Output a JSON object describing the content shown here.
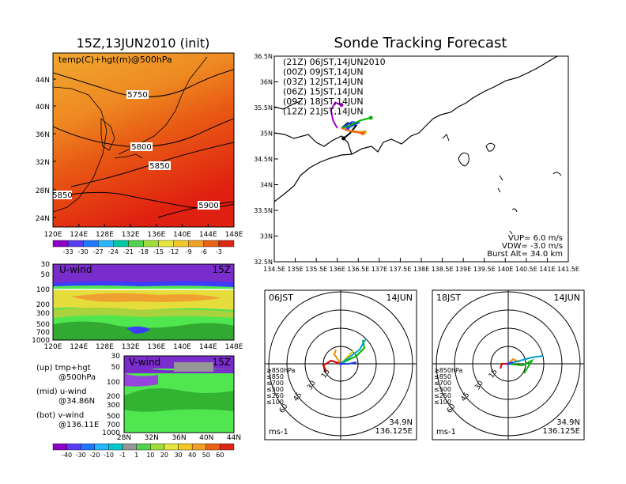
{
  "left": {
    "title": "15Z,13JUN2010 (init)",
    "map": {
      "label": "temp(C)+hgt(m)@500hPa",
      "lat_ticks": [
        "44N",
        "40N",
        "36N",
        "32N",
        "28N",
        "24N"
      ],
      "lon_ticks": [
        "120E",
        "124E",
        "128E",
        "132E",
        "136E",
        "140E",
        "144E",
        "148E"
      ],
      "contours": [
        "5750",
        "5800",
        "5850",
        "5850",
        "5900"
      ]
    },
    "temp_colorbar": [
      "-33",
      "-30",
      "-27",
      "-24",
      "-21",
      "-18",
      "-15",
      "-12",
      "-9",
      "-6",
      "-3"
    ],
    "uwind": {
      "label": "U-wind",
      "time": "15Z",
      "p_ticks": [
        "30",
        "50",
        "100",
        "200",
        "300",
        "500",
        "700",
        "1000"
      ],
      "lon_ticks": [
        "120E",
        "124E",
        "128E",
        "132E",
        "136E",
        "140E",
        "144E",
        "148E"
      ]
    },
    "vwind": {
      "label": "V-wind",
      "time": "15Z",
      "p_ticks": [
        "30",
        "50",
        "100",
        "200",
        "300",
        "500",
        "700",
        "1000"
      ],
      "lat_ticks": [
        "28N",
        "32N",
        "36N",
        "40N",
        "44N"
      ]
    },
    "notes": [
      {
        "a": "(up)  tmp+hgt",
        "b": "@500hPa"
      },
      {
        "a": "(mid)  u-wind",
        "b": "@34.86N"
      },
      {
        "a": "(bot)  v-wind",
        "b": "@136.11E"
      }
    ],
    "wind_colorbar": [
      "-40",
      "-30",
      "-20",
      "-10",
      "-1",
      "1",
      "10",
      "20",
      "30",
      "40",
      "50",
      "60"
    ]
  },
  "right": {
    "title": "Sonde Tracking Forecast",
    "map": {
      "lat_ticks": [
        "36.5N",
        "36N",
        "35.5N",
        "35N",
        "34.5N",
        "34N",
        "33.5N",
        "33N",
        "32.5N"
      ],
      "lon_ticks": [
        "134.5E",
        "135E",
        "135.5E",
        "136E",
        "136.5E",
        "137E",
        "137.5E",
        "138E",
        "138.5E",
        "139E",
        "139.5E",
        "140E",
        "140.5E",
        "141E",
        "141.5E"
      ],
      "legend": [
        {
          "text": "(21Z)  06JST,14JUN2010",
          "color": "#000000"
        },
        {
          "text": "(00Z)  09JST,14JUN",
          "color": "#a000c8"
        },
        {
          "text": "(03Z)  12JST,14JUN",
          "color": "#1e3cff"
        },
        {
          "text": "(06Z)  15JST,14JUN",
          "color": "#00b400"
        },
        {
          "text": "(09Z)  18JST,14JUN",
          "color": "#e6a000"
        },
        {
          "text": "(12Z)  21JST,14JUN",
          "color": "#f06414"
        }
      ],
      "params": [
        "VUP=  6.0  m/s",
        "VDW= -3.0  m/s",
        "Burst Alt=  34.0  km"
      ]
    },
    "hodographs": [
      {
        "label": "06JST",
        "date": "14JUN",
        "units": "ms-1",
        "lat": "34.9N",
        "lon": "136.125E"
      },
      {
        "label": "18JST",
        "date": "14JUN",
        "units": "ms-1",
        "lat": "34.9N",
        "lon": "136.125E"
      }
    ],
    "hodo_rings": [
      "15",
      "30",
      "45",
      "60"
    ],
    "hodo_levels": [
      {
        "text": "≥850hPa",
        "color": "#d00000"
      },
      {
        "text": "≤850",
        "color": "#f08c00"
      },
      {
        "text": "≤700",
        "color": "#dcc800"
      },
      {
        "text": "≤500",
        "color": "#00b400"
      },
      {
        "text": "≤250",
        "color": "#00a0c8"
      },
      {
        "text": "≤100",
        "color": "#1e3cff"
      }
    ]
  },
  "chart_data": [
    {
      "type": "heatmap",
      "title": "15Z,13JUN2010 (init)",
      "label": "temp(C)+hgt(m)@500hPa",
      "x_range": [
        "120E",
        "148E"
      ],
      "y_range": [
        "24N",
        "44N"
      ],
      "contour_values": [
        5750,
        5800,
        5850,
        5900
      ],
      "colorbar": [
        -33,
        -30,
        -27,
        -24,
        -21,
        -18,
        -15,
        -12,
        -9,
        -6,
        -3
      ]
    },
    {
      "type": "heatmap",
      "label": "U-wind",
      "time": "15Z",
      "y_levels_hPa": [
        30,
        50,
        100,
        200,
        300,
        500,
        700,
        1000
      ]
    },
    {
      "type": "heatmap",
      "label": "V-wind",
      "time": "15Z",
      "y_levels_hPa": [
        30,
        50,
        100,
        200,
        300,
        500,
        700,
        1000
      ]
    },
    {
      "type": "line",
      "title": "Sonde Tracking Forecast",
      "xlim": [
        134.5,
        141.5
      ],
      "ylim": [
        32.5,
        36.5
      ],
      "series": [
        {
          "name": "(21Z)  06JST,14JUN2010",
          "color": "#000000",
          "x": [
            136.1,
            136.25,
            136.45,
            136.3,
            136.15
          ],
          "y": [
            35.1,
            35.2,
            35.15,
            35.0,
            34.9
          ]
        },
        {
          "name": "(00Z)  09JST,14JUN",
          "color": "#a000c8",
          "x": [
            136.0,
            135.9,
            135.85,
            135.95,
            136.1
          ],
          "y": [
            35.1,
            35.25,
            35.45,
            35.6,
            35.55
          ]
        },
        {
          "name": "(03Z)  12JST,14JUN",
          "color": "#1e3cff",
          "x": [
            136.1,
            136.35,
            136.5,
            136.25
          ],
          "y": [
            35.1,
            35.22,
            35.2,
            35.1
          ]
        },
        {
          "name": "(06Z)  15JST,14JUN",
          "color": "#00b400",
          "x": [
            136.1,
            136.3,
            136.55,
            136.8
          ],
          "y": [
            35.1,
            35.15,
            35.25,
            35.3
          ]
        },
        {
          "name": "(09Z)  18JST,14JUN",
          "color": "#e6a000",
          "x": [
            136.1,
            136.3,
            136.65
          ],
          "y": [
            35.1,
            35.05,
            35.02
          ]
        },
        {
          "name": "(12Z)  21JST,14JUN",
          "color": "#f06414",
          "x": [
            136.1,
            136.3,
            136.6
          ],
          "y": [
            35.1,
            35.04,
            35.0
          ]
        }
      ]
    }
  ]
}
